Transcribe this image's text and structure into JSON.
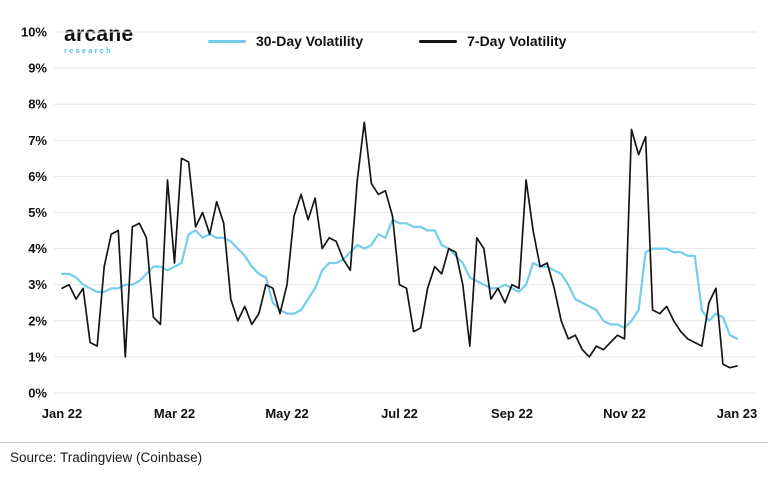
{
  "brand": {
    "name": "arcane",
    "subtitle": "research"
  },
  "footer": {
    "source": "Source: Tradingview (Coinbase)"
  },
  "chart_data": {
    "type": "line",
    "title": "",
    "xlabel": "",
    "ylabel": "",
    "grid": true,
    "legend_position": "top",
    "ylim": [
      0,
      10
    ],
    "y_ticks": [
      0,
      1,
      2,
      3,
      4,
      5,
      6,
      7,
      8,
      9,
      10
    ],
    "y_tick_suffix": "%",
    "x_range_months": [
      0,
      12
    ],
    "x_tick_positions_months": [
      0,
      2,
      4,
      6,
      8,
      10,
      12
    ],
    "x_tick_labels": [
      "Jan 22",
      "Mar 22",
      "May 22",
      "Jul 22",
      "Sep 22",
      "Nov 22",
      "Jan 23"
    ],
    "colors": {
      "grid": "#e7e7e7",
      "axis_text": "#111111"
    },
    "series": [
      {
        "name": "30-Day Volatility",
        "color": "#74cdec",
        "values": [
          3.3,
          3.3,
          3.2,
          3.0,
          2.9,
          2.8,
          2.8,
          2.9,
          2.9,
          3.0,
          3.0,
          3.1,
          3.3,
          3.5,
          3.5,
          3.4,
          3.5,
          3.6,
          4.4,
          4.5,
          4.3,
          4.4,
          4.3,
          4.3,
          4.2,
          4.0,
          3.8,
          3.5,
          3.3,
          3.2,
          2.5,
          2.3,
          2.2,
          2.2,
          2.3,
          2.6,
          2.9,
          3.4,
          3.6,
          3.6,
          3.7,
          3.9,
          4.1,
          4.0,
          4.1,
          4.4,
          4.3,
          4.8,
          4.7,
          4.7,
          4.6,
          4.6,
          4.5,
          4.5,
          4.1,
          4.0,
          3.8,
          3.6,
          3.2,
          3.1,
          3.0,
          2.9,
          2.9,
          3.0,
          2.9,
          2.8,
          3.0,
          3.6,
          3.5,
          3.5,
          3.4,
          3.3,
          3.0,
          2.6,
          2.5,
          2.4,
          2.3,
          2.0,
          1.9,
          1.9,
          1.8,
          2.0,
          2.3,
          3.9,
          4.0,
          4.0,
          4.0,
          3.9,
          3.9,
          3.8,
          3.8,
          2.3,
          2.0,
          2.2,
          2.1,
          1.6,
          1.5
        ]
      },
      {
        "name": "7-Day Volatility",
        "color": "#161616",
        "values": [
          2.9,
          3.0,
          2.6,
          2.9,
          1.4,
          1.3,
          3.5,
          4.4,
          4.5,
          1.0,
          4.6,
          4.7,
          4.3,
          2.1,
          1.9,
          5.9,
          3.6,
          6.5,
          6.4,
          4.6,
          5.0,
          4.4,
          5.3,
          4.7,
          2.6,
          2.0,
          2.4,
          1.9,
          2.2,
          3.0,
          2.9,
          2.2,
          3.0,
          4.9,
          5.5,
          4.8,
          5.4,
          4.0,
          4.3,
          4.2,
          3.7,
          3.4,
          5.9,
          7.5,
          5.8,
          5.5,
          5.6,
          4.9,
          3.0,
          2.9,
          1.7,
          1.8,
          2.9,
          3.5,
          3.3,
          4.0,
          3.9,
          3.0,
          1.3,
          4.3,
          4.0,
          2.6,
          2.9,
          2.5,
          3.0,
          2.9,
          5.9,
          4.5,
          3.5,
          3.6,
          2.9,
          2.0,
          1.5,
          1.6,
          1.2,
          1.0,
          1.3,
          1.2,
          1.4,
          1.6,
          1.5,
          7.3,
          6.6,
          7.1,
          2.3,
          2.2,
          2.4,
          2.0,
          1.7,
          1.5,
          1.4,
          1.3,
          2.5,
          2.9,
          0.8,
          0.7,
          0.75
        ]
      }
    ]
  }
}
